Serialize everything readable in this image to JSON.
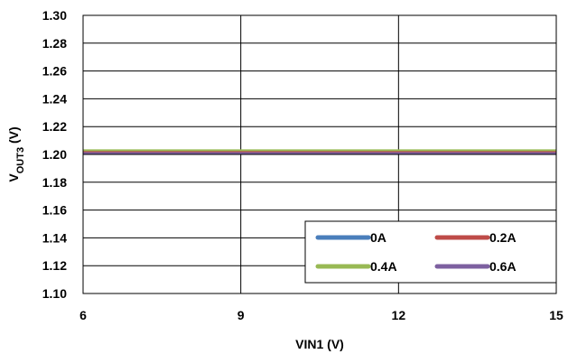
{
  "chart_data": {
    "type": "line",
    "title": "",
    "xlabel": "VIN1 (V)",
    "ylabel": {
      "main": "V",
      "sub": "OUT3",
      "unit": " (V)"
    },
    "xlim": [
      6,
      15
    ],
    "ylim": [
      1.1,
      1.3
    ],
    "xticks": [
      6,
      9,
      12,
      15
    ],
    "xtick_labels": [
      "6",
      "9",
      "12",
      "15"
    ],
    "yticks": [
      1.1,
      1.12,
      1.14,
      1.16,
      1.18,
      1.2,
      1.22,
      1.24,
      1.26,
      1.28,
      1.3
    ],
    "ytick_labels": [
      "1.10",
      "1.12",
      "1.14",
      "1.16",
      "1.18",
      "1.20",
      "1.22",
      "1.24",
      "1.26",
      "1.28",
      "1.30"
    ],
    "grid": {
      "x": true,
      "y": true
    },
    "legend_position": "bottom-right",
    "series": [
      {
        "name": "0A",
        "color": "#4A7EBB",
        "x": [
          6,
          15
        ],
        "y": [
          1.202,
          1.202
        ]
      },
      {
        "name": "0.2A",
        "color": "#BE4B48",
        "x": [
          6,
          15
        ],
        "y": [
          1.202,
          1.202
        ]
      },
      {
        "name": "0.4A",
        "color": "#98B954",
        "x": [
          6,
          15
        ],
        "y": [
          1.203,
          1.203
        ]
      },
      {
        "name": "0.6A",
        "color": "#7D60A0",
        "x": [
          6,
          15
        ],
        "y": [
          1.201,
          1.201
        ]
      }
    ]
  }
}
